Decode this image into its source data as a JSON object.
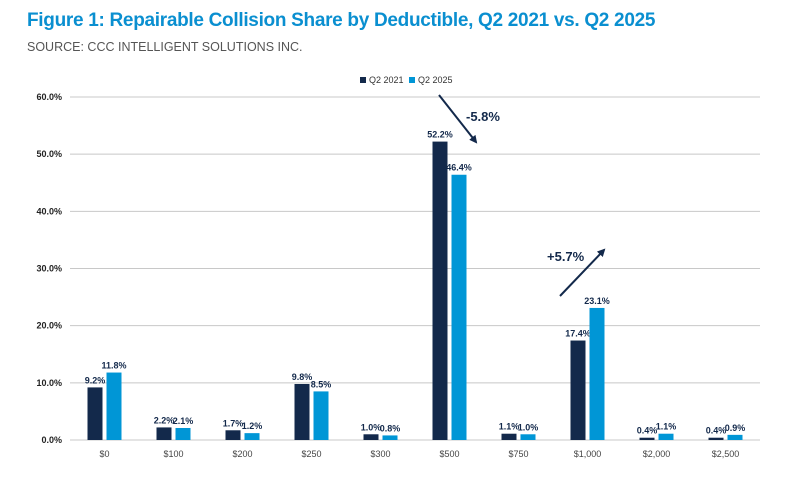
{
  "chart_data": {
    "type": "bar",
    "title": "Figure 1: Repairable Collision Share by Deductible, Q2 2021 vs. Q2 2025",
    "subtitle": "SOURCE: CCC INTELLIGENT SOLUTIONS INC.",
    "categories": [
      "$0",
      "$100",
      "$200",
      "$250",
      "$300",
      "$500",
      "$750",
      "$1,000",
      "$2,000",
      "$2,500"
    ],
    "series": [
      {
        "name": "Q2 2021",
        "color": "#13294b",
        "values": [
          9.2,
          2.2,
          1.7,
          9.8,
          1.0,
          52.2,
          1.1,
          17.4,
          0.4,
          0.4
        ],
        "labels": [
          "9.2%",
          "2.2%",
          "1.7%",
          "9.8%",
          "1.0%",
          "52.2%",
          "1.1%",
          "17.4%",
          "0.4%",
          "0.4%"
        ]
      },
      {
        "name": "Q2 2025",
        "color": "#0096d6",
        "values": [
          11.8,
          2.1,
          1.2,
          8.5,
          0.8,
          46.4,
          1.0,
          23.1,
          1.1,
          0.9
        ],
        "labels": [
          "11.8%",
          "2.1%",
          "1.2%",
          "8.5%",
          "0.8%",
          "46.4%",
          "1.0%",
          "23.1%",
          "1.1%",
          "0.9%"
        ]
      }
    ],
    "yticks": [
      0,
      10,
      20,
      30,
      40,
      50,
      60
    ],
    "ytick_labels": [
      "0.0%",
      "10.0%",
      "20.0%",
      "30.0%",
      "40.0%",
      "50.0%",
      "60.0%"
    ],
    "ylim": [
      0,
      60
    ],
    "grid": true,
    "legend_position": "top-center",
    "annotations": [
      {
        "text": "-5.8%",
        "category": "$500",
        "direction": "down"
      },
      {
        "text": "+5.7%",
        "category": "$1,000",
        "direction": "up"
      }
    ]
  }
}
